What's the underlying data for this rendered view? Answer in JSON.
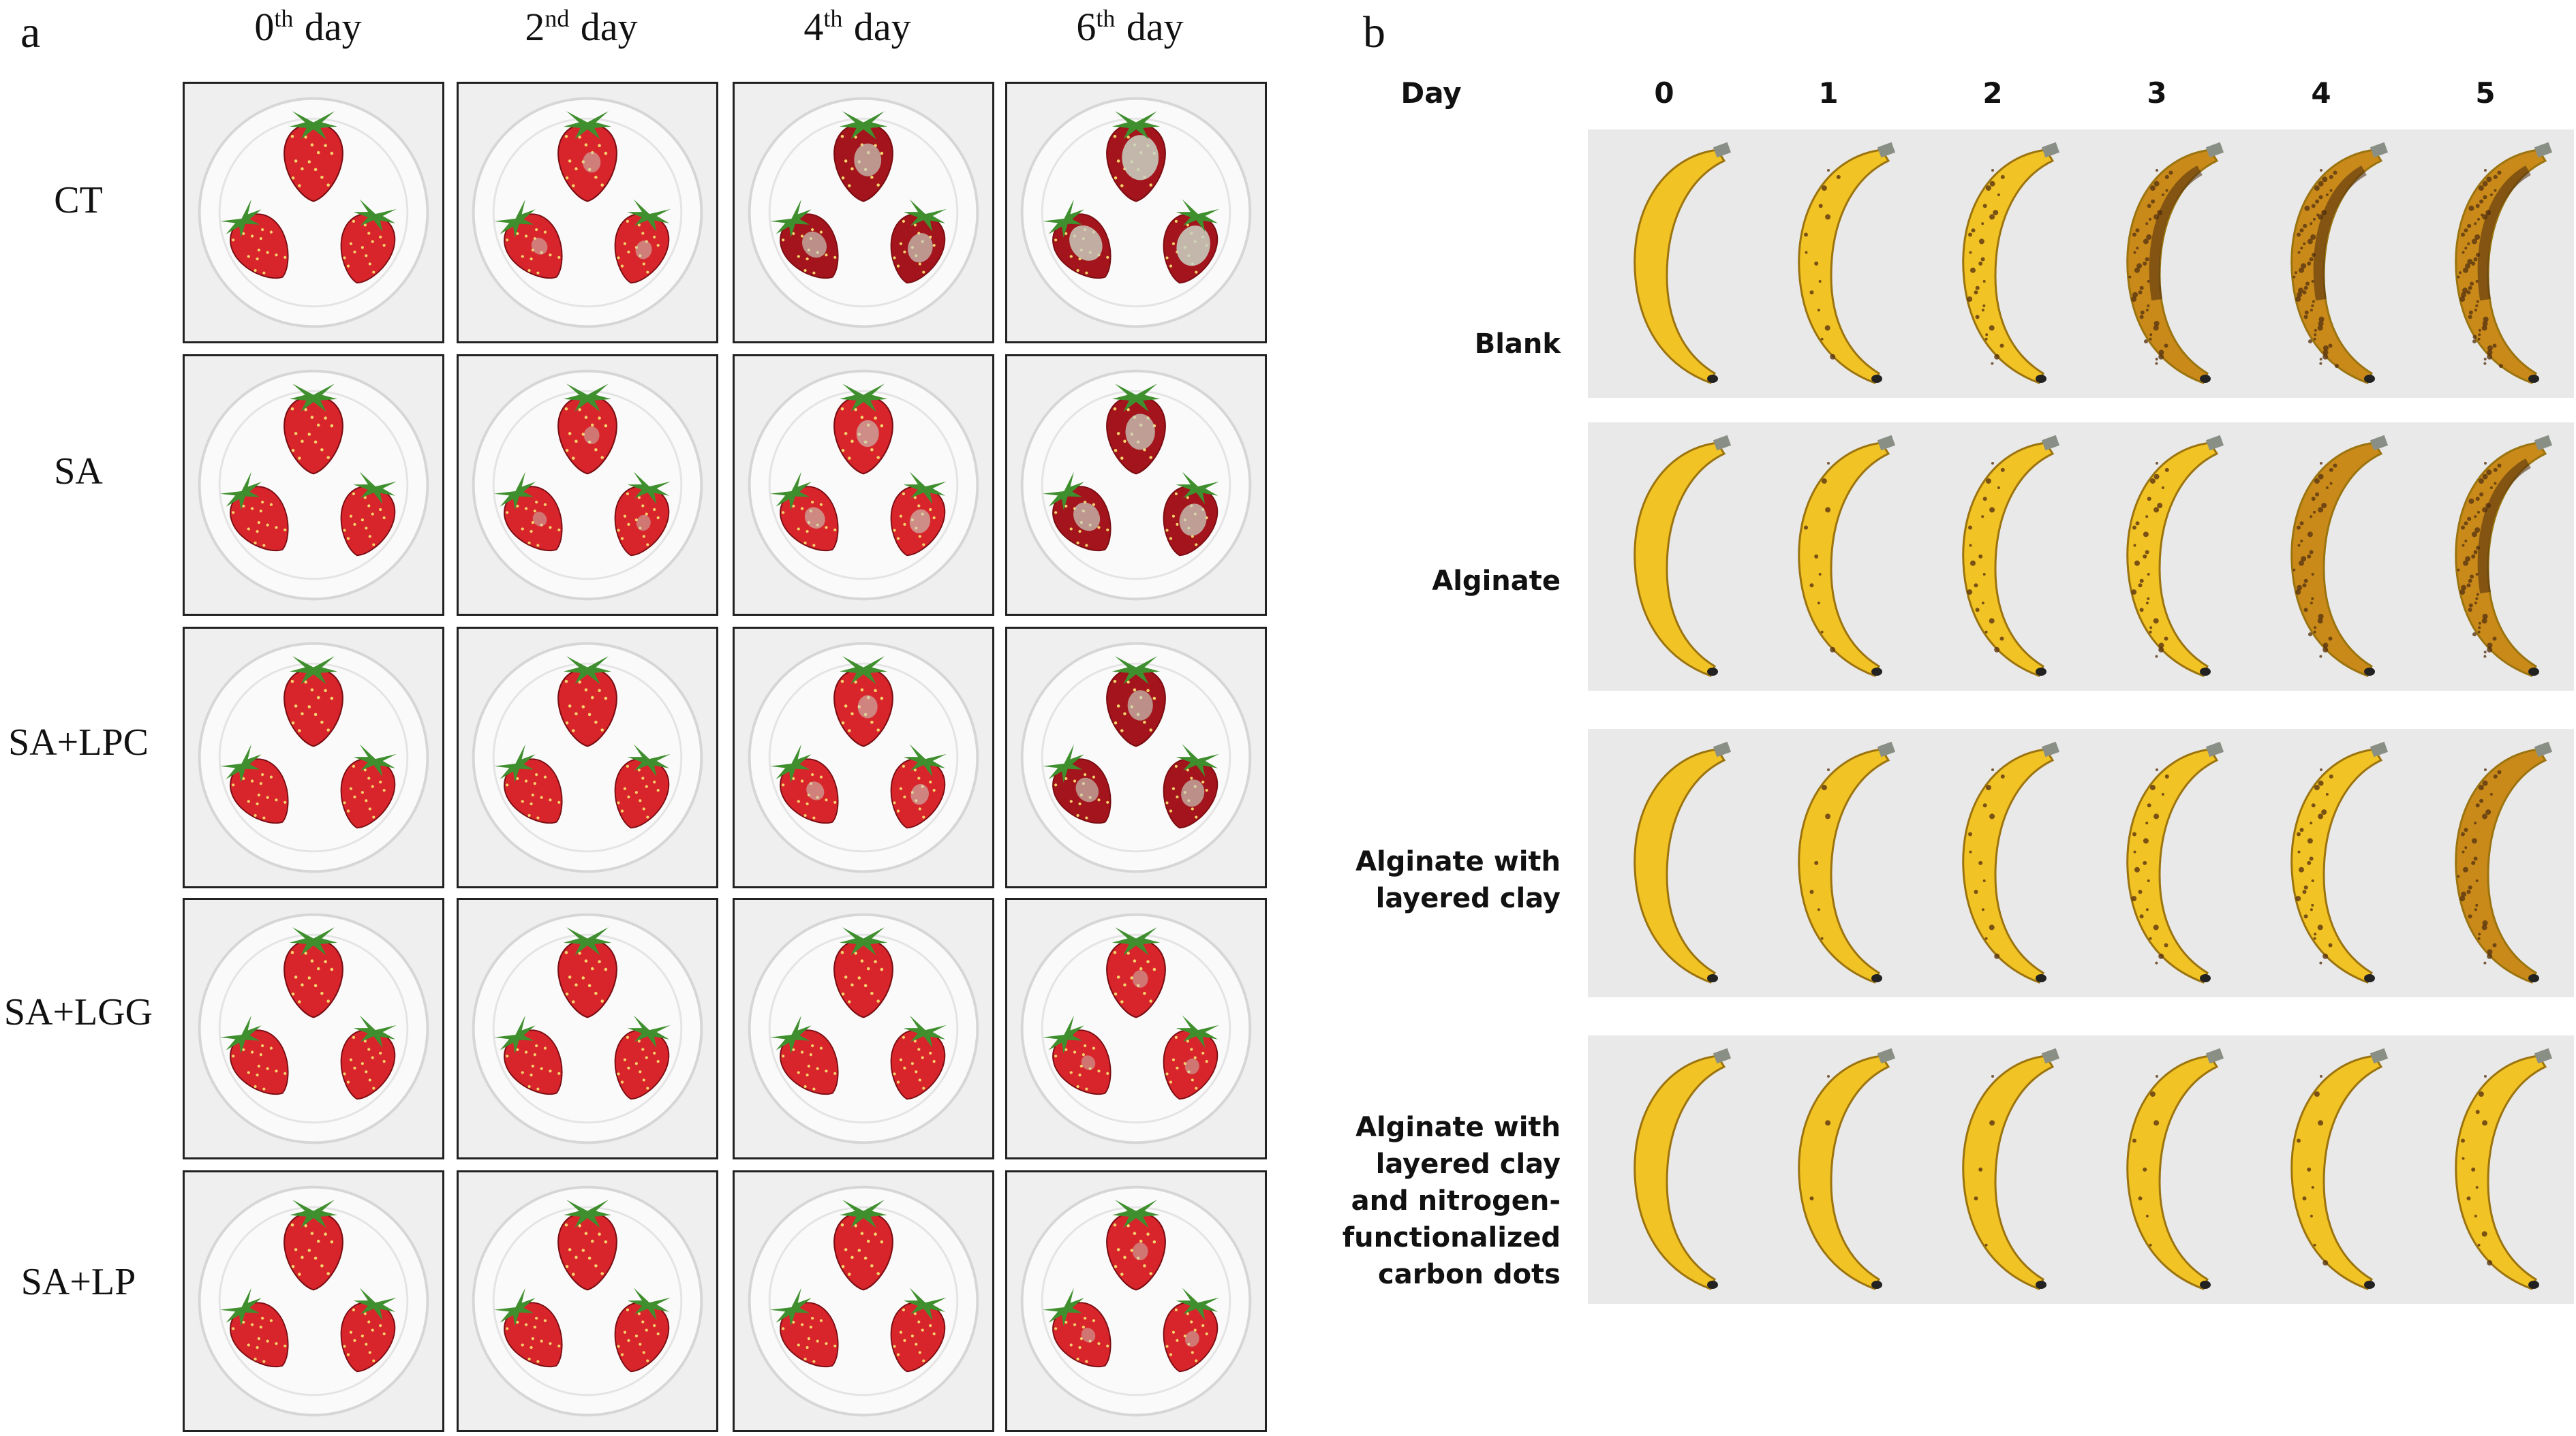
{
  "panel_a": {
    "letter": "a",
    "day_headers": [
      {
        "num": "0",
        "sup": "th",
        "word": "day"
      },
      {
        "num": "2",
        "sup": "nd",
        "word": "day"
      },
      {
        "num": "4",
        "sup": "th",
        "word": "day"
      },
      {
        "num": "6",
        "sup": "th",
        "word": "day"
      }
    ],
    "row_labels": [
      "CT",
      "SA",
      "SA+LPC",
      "SA+LGG",
      "SA+LP"
    ],
    "colors": {
      "berry": "#d8252c",
      "berry_dark": "#a3141c",
      "leaf": "#3f8f2e",
      "mold": "#c9d3c4",
      "plate": "#fafafa"
    }
  },
  "panel_b": {
    "letter": "b",
    "day_header_label": "Day",
    "days": [
      "0",
      "1",
      "2",
      "3",
      "4",
      "5"
    ],
    "row_labels": [
      "Blank",
      "Alginate",
      "Alginate with\nlayered clay",
      "Alginate with\nlayered clay\nand nitrogen-\nfunctionalized\ncarbon dots"
    ],
    "colors": {
      "banana": "#f2c325",
      "banana_ripe": "#c98a1a",
      "spot": "#5a3410",
      "background": "#e9e9e9"
    }
  }
}
